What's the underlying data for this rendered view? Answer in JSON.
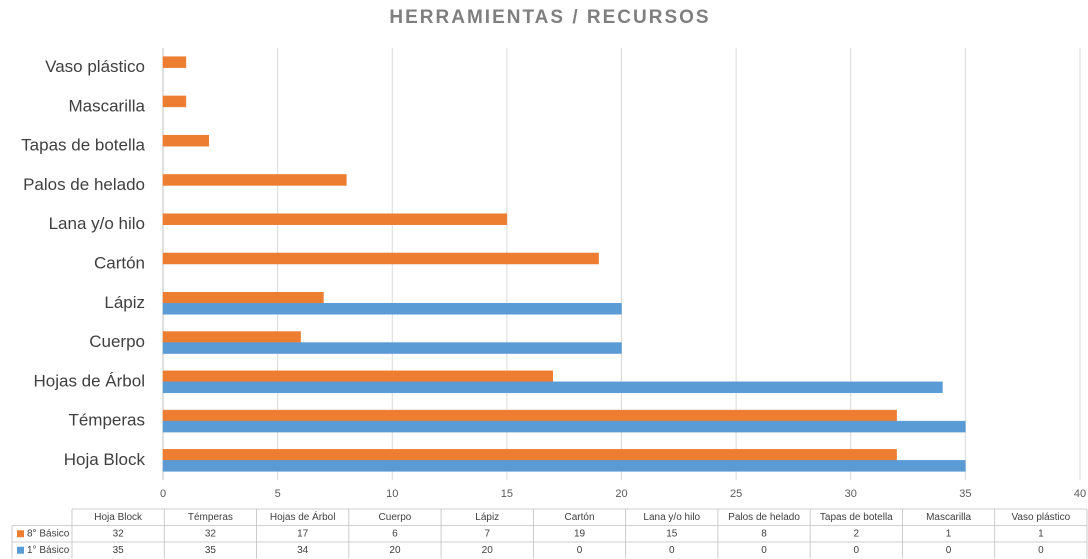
{
  "chart_data": {
    "type": "hbar",
    "title": "HERRAMIENTAS / RECURSOS",
    "categories": [
      "Hoja Block",
      "Témperas",
      "Hojas de Árbol",
      "Cuerpo",
      "Lápiz",
      "Cartón",
      "Lana y/o hilo",
      "Palos de helado",
      "Tapas de botella",
      "Mascarilla",
      "Vaso plástico"
    ],
    "series": [
      {
        "name": "8° Básico",
        "color": "#ed7d31",
        "values": [
          32,
          32,
          17,
          6,
          7,
          19,
          15,
          8,
          2,
          1,
          1
        ]
      },
      {
        "name": "1° Básico",
        "color": "#5b9bd5",
        "values": [
          35,
          35,
          34,
          20,
          20,
          0,
          0,
          0,
          0,
          0,
          0
        ]
      }
    ],
    "xlim": [
      0,
      40
    ],
    "xticks": [
      0,
      5,
      10,
      15,
      20,
      25,
      30,
      35,
      40
    ],
    "grid": true
  }
}
